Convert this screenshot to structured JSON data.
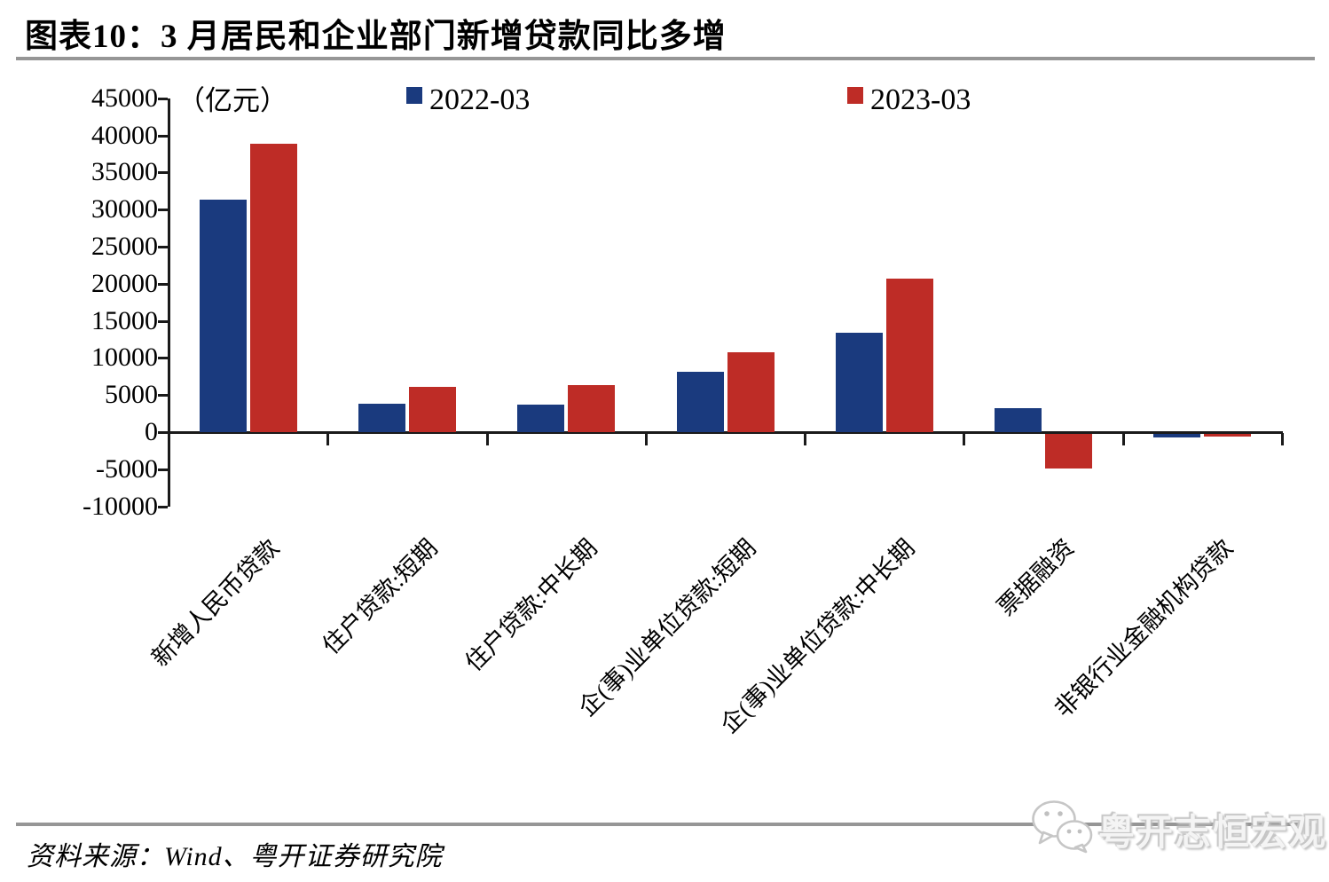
{
  "title": "图表10：3 月居民和企业部门新增贷款同比多增",
  "unit_label": "（亿元）",
  "legend": [
    {
      "label": "2022-03",
      "color": "#1A3A7E"
    },
    {
      "label": "2023-03",
      "color": "#BE2C26"
    }
  ],
  "footer": {
    "source_text": "资料来源：Wind、粤开证券研究院"
  },
  "watermark": {
    "icon": "wechat-icon",
    "text": "粤开志恒宏观"
  },
  "colors": {
    "axis": "#1a1a1a",
    "divider": "#969696"
  },
  "chart_data": {
    "type": "bar",
    "title": "图表10：3 月居民和企业部门新增贷款同比多增",
    "unit": "亿元",
    "categories": [
      "新增人民币贷款",
      "住户贷款:短期",
      "住户贷款:中长期",
      "企(事)业单位贷款:短期",
      "企(事)业单位贷款:中长期",
      "票据融资",
      "非银行业金融机构贷款"
    ],
    "series": [
      {
        "name": "2022-03",
        "color": "#1A3A7E",
        "values": [
          31300,
          3848,
          3735,
          8089,
          13448,
          3187,
          -454
        ]
      },
      {
        "name": "2023-03",
        "color": "#BE2C26",
        "values": [
          38900,
          6094,
          6348,
          10815,
          20700,
          -4687,
          -379
        ]
      }
    ],
    "ylabel": "亿元",
    "xlabel": "",
    "ylim": [
      -10000,
      45000
    ],
    "ytick_step": 5000,
    "grid": false,
    "legend_position": "top"
  }
}
